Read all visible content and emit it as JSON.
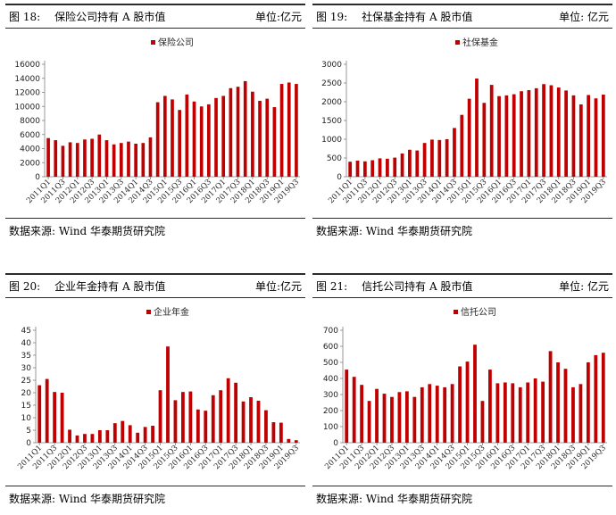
{
  "colors": {
    "bar": "#c00000",
    "axis": "#808080"
  },
  "panels": [
    {
      "fig_label": "图 18:",
      "title": "保险公司持有 A 股市值",
      "unit": "单位:亿元",
      "source": "数据来源:  Wind  华泰期货研究院",
      "chart_data": {
        "type": "bar",
        "series": [
          {
            "name": "保险公司",
            "values": [
              5500,
              5200,
              4400,
              4900,
              4800,
              5300,
              5400,
              6000,
              5200,
              4600,
              4800,
              5000,
              4700,
              4800,
              5600,
              10600,
              11500,
              11000,
              9500,
              11700,
              10700,
              10000,
              10300,
              11200,
              11500,
              12600,
              12800,
              13600,
              12100,
              10800,
              11100,
              9900,
              13200,
              13400,
              13200
            ]
          }
        ],
        "categories": [
          "2011Q1",
          "2011Q2",
          "2011Q3",
          "2011Q4",
          "2012Q1",
          "2012Q2",
          "2012Q3",
          "2012Q4",
          "2013Q1",
          "2013Q2",
          "2013Q3",
          "2013Q4",
          "2014Q1",
          "2014Q2",
          "2014Q3",
          "2014Q4",
          "2015Q1",
          "2015Q2",
          "2015Q3",
          "2015Q4",
          "2016Q1",
          "2016Q2",
          "2016Q3",
          "2016Q4",
          "2017Q1",
          "2017Q2",
          "2017Q3",
          "2017Q4",
          "2018Q1",
          "2018Q2",
          "2018Q3",
          "2018Q4",
          "2019Q1",
          "2019Q2",
          "2019Q3"
        ],
        "tick_labels": [
          "2011Q1",
          "2011Q3",
          "2012Q1",
          "2012Q3",
          "2013Q1",
          "2013Q3",
          "2014Q1",
          "2014Q3",
          "2015Q1",
          "2015Q3",
          "2016Q1",
          "2016Q3",
          "2017Q1",
          "2017Q3",
          "2018Q1",
          "2018Q3",
          "2019Q1",
          "2019Q3"
        ],
        "yticks": [
          "0",
          "2000",
          "4000",
          "6000",
          "8000",
          "10000",
          "12000",
          "14000",
          "16000"
        ],
        "ylim": [
          0,
          16000
        ],
        "legend": "top-center"
      }
    },
    {
      "fig_label": "图 19:",
      "title": "社保基金持有 A 股市值",
      "unit": "单位: 亿元",
      "source": "数据来源:  Wind  华泰期货研究院",
      "chart_data": {
        "type": "bar",
        "series": [
          {
            "name": "社保基金",
            "values": [
              400,
              430,
              410,
              440,
              490,
              480,
              510,
              620,
              720,
              700,
              900,
              990,
              980,
              1000,
              1300,
              1650,
              2080,
              2620,
              1970,
              2450,
              2150,
              2170,
              2200,
              2280,
              2310,
              2360,
              2470,
              2440,
              2380,
              2300,
              2170,
              1930,
              2180,
              2090,
              2190
            ]
          }
        ],
        "categories": [
          "2011Q1",
          "2011Q2",
          "2011Q3",
          "2011Q4",
          "2012Q1",
          "2012Q2",
          "2012Q3",
          "2012Q4",
          "2013Q1",
          "2013Q2",
          "2013Q3",
          "2013Q4",
          "2014Q1",
          "2014Q2",
          "2014Q3",
          "2014Q4",
          "2015Q1",
          "2015Q2",
          "2015Q3",
          "2015Q4",
          "2016Q1",
          "2016Q2",
          "2016Q3",
          "2016Q4",
          "2017Q1",
          "2017Q2",
          "2017Q3",
          "2017Q4",
          "2018Q1",
          "2018Q2",
          "2018Q3",
          "2018Q4",
          "2019Q1",
          "2019Q2",
          "2019Q3"
        ],
        "tick_labels": [
          "2011Q1",
          "2011Q3",
          "2012Q1",
          "2012Q3",
          "2013Q1",
          "2013Q3",
          "2014Q1",
          "2014Q3",
          "2015Q1",
          "2015Q3",
          "2016Q1",
          "2016Q3",
          "2017Q1",
          "2017Q3",
          "2018Q1",
          "2018Q3",
          "2019Q1",
          "2019Q3"
        ],
        "yticks": [
          "0",
          "500",
          "1000",
          "1500",
          "2000",
          "2500",
          "3000"
        ],
        "ylim": [
          0,
          3000
        ],
        "legend": "top-center"
      }
    },
    {
      "fig_label": "图 20:",
      "title": "企业年金持有 A 股市值",
      "unit": "单位:亿元",
      "source": "数据来源:  Wind  华泰期货研究院",
      "chart_data": {
        "type": "bar",
        "series": [
          {
            "name": "企业年金",
            "values": [
              23,
              25.5,
              20.3,
              20,
              5.2,
              2.9,
              3.5,
              3.5,
              5,
              5,
              7.8,
              8.7,
              7,
              4,
              6.3,
              6.8,
              21,
              38.5,
              17,
              20.3,
              20.5,
              13.3,
              12.8,
              19,
              21,
              25.8,
              24,
              16.5,
              18.2,
              16.8,
              13,
              8.2,
              8,
              1.5,
              1
            ]
          }
        ],
        "categories": [
          "2011Q1",
          "2011Q2",
          "2011Q3",
          "2011Q4",
          "2012Q1",
          "2012Q2",
          "2012Q3",
          "2012Q4",
          "2013Q1",
          "2013Q2",
          "2013Q3",
          "2013Q4",
          "2014Q1",
          "2014Q2",
          "2014Q3",
          "2014Q4",
          "2015Q1",
          "2015Q2",
          "2015Q3",
          "2015Q4",
          "2016Q1",
          "2016Q2",
          "2016Q3",
          "2016Q4",
          "2017Q1",
          "2017Q2",
          "2017Q3",
          "2017Q4",
          "2018Q1",
          "2018Q2",
          "2018Q3",
          "2018Q4",
          "2019Q1",
          "2019Q2",
          "2019Q3"
        ],
        "tick_labels": [
          "2011Q1",
          "2011Q3",
          "2012Q1",
          "2012Q3",
          "2013Q1",
          "2013Q3",
          "2014Q1",
          "2014Q3",
          "2015Q1",
          "2015Q3",
          "2016Q1",
          "2016Q3",
          "2017Q1",
          "2017Q3",
          "2018Q1",
          "2018Q3",
          "2019Q1",
          "2019Q3"
        ],
        "yticks": [
          "0",
          "5",
          "10",
          "15",
          "20",
          "25",
          "30",
          "35",
          "40",
          "45"
        ],
        "ylim": [
          0,
          45
        ],
        "legend": "top-center"
      }
    },
    {
      "fig_label": "图 21:",
      "title": "信托公司持有 A 股市值",
      "unit": "单位: 亿元",
      "source": "数据来源:  Wind  华泰期货研究院",
      "chart_data": {
        "type": "bar",
        "series": [
          {
            "name": "信托公司",
            "values": [
              455,
              410,
              360,
              260,
              335,
              305,
              285,
              315,
              320,
              285,
              345,
              365,
              355,
              345,
              365,
              475,
              505,
              610,
              260,
              455,
              370,
              375,
              370,
              345,
              375,
              400,
              380,
              570,
              500,
              460,
              345,
              365,
              500,
              545,
              560
            ]
          }
        ],
        "categories": [
          "2011Q1",
          "2011Q2",
          "2011Q3",
          "2011Q4",
          "2012Q1",
          "2012Q2",
          "2012Q3",
          "2012Q4",
          "2013Q1",
          "2013Q2",
          "2013Q3",
          "2013Q4",
          "2014Q1",
          "2014Q2",
          "2014Q3",
          "2014Q4",
          "2015Q1",
          "2015Q2",
          "2015Q3",
          "2015Q4",
          "2016Q1",
          "2016Q2",
          "2016Q3",
          "2016Q4",
          "2017Q1",
          "2017Q2",
          "2017Q3",
          "2017Q4",
          "2018Q1",
          "2018Q2",
          "2018Q3",
          "2018Q4",
          "2019Q1",
          "2019Q2",
          "2019Q3"
        ],
        "tick_labels": [
          "2011Q1",
          "2011Q3",
          "2012Q1",
          "2012Q3",
          "2013Q1",
          "2013Q3",
          "2014Q1",
          "2014Q3",
          "2015Q1",
          "2015Q3",
          "2016Q1",
          "2016Q3",
          "2017Q1",
          "2017Q3",
          "2018Q1",
          "2018Q3",
          "2019Q1",
          "2019Q3"
        ],
        "yticks": [
          "0",
          "100",
          "200",
          "300",
          "400",
          "500",
          "600",
          "700"
        ],
        "ylim": [
          0,
          700
        ],
        "legend": "top-center"
      }
    }
  ]
}
